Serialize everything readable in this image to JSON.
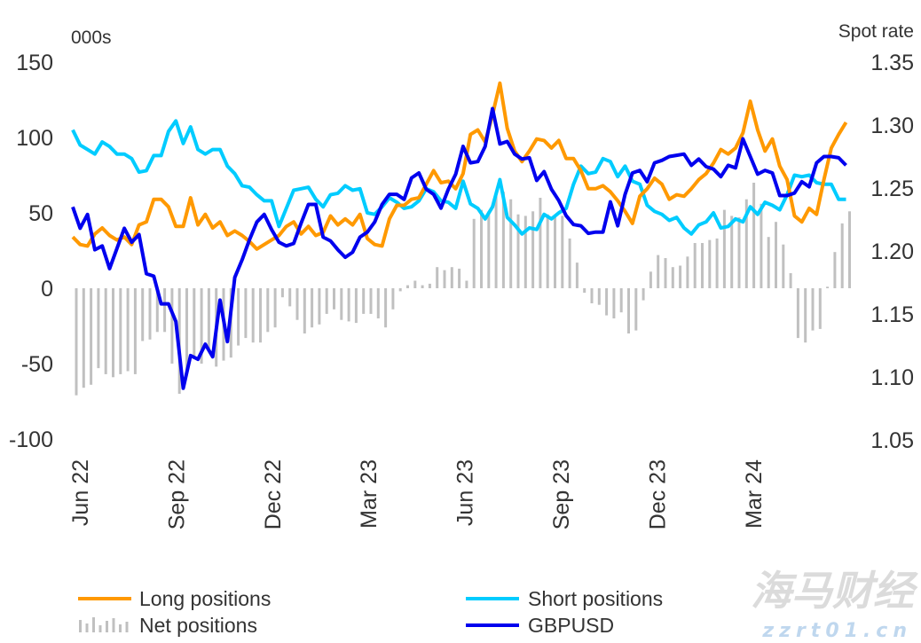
{
  "chart_data": {
    "type": "line",
    "title": "",
    "left_axis": {
      "unit_label": "000s",
      "ylim": [
        -100,
        150
      ],
      "ticks": [
        "150",
        "100",
        "50",
        "0",
        "-50",
        "-100"
      ],
      "tick_values": [
        150,
        100,
        50,
        0,
        -50,
        -100
      ]
    },
    "right_axis": {
      "unit_label": "Spot rate",
      "ylim": [
        1.05,
        1.35
      ],
      "ticks": [
        "1.35",
        "1.30",
        "1.25",
        "1.20",
        "1.15",
        "1.10",
        "1.05"
      ],
      "tick_values": [
        1.35,
        1.3,
        1.25,
        1.2,
        1.15,
        1.1,
        1.05
      ]
    },
    "x_tick_labels": [
      "Jun 22",
      "Sep 22",
      "Dec 22",
      "Mar 23",
      "Jun 23",
      "Sep 23",
      "Dec 23",
      "Mar 24"
    ],
    "grid": false,
    "legend_placement": "bottom",
    "x": [
      "2022-06-07",
      "2022-06-14",
      "2022-06-21",
      "2022-06-28",
      "2022-07-05",
      "2022-07-12",
      "2022-07-19",
      "2022-07-26",
      "2022-08-02",
      "2022-08-09",
      "2022-08-16",
      "2022-08-23",
      "2022-08-30",
      "2022-09-06",
      "2022-09-13",
      "2022-09-20",
      "2022-09-27",
      "2022-10-04",
      "2022-10-11",
      "2022-10-18",
      "2022-10-25",
      "2022-11-01",
      "2022-11-08",
      "2022-11-15",
      "2022-11-22",
      "2022-11-29",
      "2022-12-06",
      "2022-12-13",
      "2022-12-20",
      "2022-12-27",
      "2023-01-03",
      "2023-01-10",
      "2023-01-17",
      "2023-01-24",
      "2023-01-31",
      "2023-02-07",
      "2023-02-14",
      "2023-02-21",
      "2023-02-28",
      "2023-03-07",
      "2023-03-14",
      "2023-03-21",
      "2023-03-28",
      "2023-04-04",
      "2023-04-11",
      "2023-04-18",
      "2023-04-25",
      "2023-05-02",
      "2023-05-09",
      "2023-05-16",
      "2023-05-23",
      "2023-05-30",
      "2023-06-06",
      "2023-06-13",
      "2023-06-20",
      "2023-06-27",
      "2023-07-04",
      "2023-07-11",
      "2023-07-18",
      "2023-07-25",
      "2023-08-01",
      "2023-08-08",
      "2023-08-15",
      "2023-08-22",
      "2023-08-29",
      "2023-09-05",
      "2023-09-12",
      "2023-09-19",
      "2023-09-26",
      "2023-10-03",
      "2023-10-10",
      "2023-10-17",
      "2023-10-24",
      "2023-10-31",
      "2023-11-07",
      "2023-11-14",
      "2023-11-21",
      "2023-11-28",
      "2023-12-05",
      "2023-12-12",
      "2023-12-19",
      "2023-12-26",
      "2024-01-02",
      "2024-01-09",
      "2024-01-16",
      "2024-01-23",
      "2024-01-30",
      "2024-02-06",
      "2024-02-13",
      "2024-02-20",
      "2024-02-27",
      "2024-03-05",
      "2024-03-12",
      "2024-03-19",
      "2024-03-26",
      "2024-04-02",
      "2024-04-09",
      "2024-04-16",
      "2024-04-23",
      "2024-04-30",
      "2024-05-07",
      "2024-05-14",
      "2024-05-21",
      "2024-05-28",
      "2024-06-04",
      "2024-06-11"
    ],
    "series": [
      {
        "name": "Long positions",
        "axis": "left",
        "kind": "line",
        "color": "#ff9900",
        "values": [
          34,
          29,
          28,
          36,
          40,
          35,
          32,
          34,
          29,
          42,
          44,
          59,
          59,
          54,
          41,
          41,
          60,
          42,
          49,
          40,
          44,
          35,
          38,
          35,
          31,
          26,
          29,
          32,
          35,
          41,
          44,
          36,
          41,
          35,
          37,
          48,
          42,
          46,
          42,
          49,
          33,
          29,
          28,
          46,
          55,
          55,
          59,
          60,
          69,
          78,
          70,
          71,
          66,
          76,
          102,
          105,
          97,
          115,
          136,
          106,
          91,
          84,
          91,
          99,
          98,
          93,
          98,
          86,
          86,
          78,
          66,
          66,
          68,
          64,
          58,
          51,
          43,
          61,
          66,
          73,
          69,
          59,
          62,
          61,
          66,
          72,
          76,
          83,
          92,
          89,
          93,
          103,
          124,
          105,
          91,
          99,
          81,
          72,
          48,
          44,
          53,
          49,
          72,
          93,
          102,
          110
        ]
      },
      {
        "name": "Short positions",
        "axis": "left",
        "kind": "line",
        "color": "#00ccff",
        "values": [
          105,
          95,
          92,
          89,
          97,
          94,
          89,
          89,
          86,
          77,
          78,
          88,
          88,
          104,
          111,
          96,
          107,
          92,
          89,
          92,
          92,
          81,
          76,
          68,
          67,
          62,
          58,
          58,
          41,
          53,
          65,
          66,
          67,
          59,
          54,
          62,
          63,
          68,
          65,
          66,
          50,
          49,
          54,
          60,
          57,
          53,
          54,
          58,
          66,
          64,
          58,
          57,
          53,
          71,
          56,
          53,
          46,
          54,
          72,
          47,
          42,
          36,
          40,
          39,
          49,
          46,
          50,
          53,
          69,
          81,
          76,
          77,
          86,
          84,
          74,
          81,
          71,
          69,
          55,
          51,
          49,
          45,
          47,
          40,
          36,
          42,
          44,
          50,
          40,
          41,
          46,
          44,
          54,
          49,
          57,
          55,
          52,
          62,
          75,
          74,
          75,
          70,
          69,
          69,
          59,
          59
        ]
      },
      {
        "name": "Net positions",
        "axis": "left",
        "kind": "bar",
        "color": "#c0c0c0",
        "values": [
          -71,
          -66,
          -64,
          -53,
          -57,
          -59,
          -57,
          -55,
          -57,
          -35,
          -34,
          -29,
          -29,
          -50,
          -70,
          -55,
          -47,
          -50,
          -40,
          -52,
          -48,
          -46,
          -38,
          -33,
          -36,
          -36,
          -29,
          -26,
          -6,
          -12,
          -21,
          -30,
          -26,
          -24,
          -17,
          -14,
          -21,
          -22,
          -23,
          -17,
          -17,
          -20,
          -26,
          -14,
          -2,
          2,
          5,
          2,
          3,
          14,
          12,
          14,
          13,
          5,
          46,
          52,
          51,
          61,
          64,
          59,
          49,
          48,
          51,
          60,
          49,
          47,
          48,
          33,
          17,
          -3,
          -10,
          -11,
          -18,
          -20,
          -16,
          -30,
          -28,
          -8,
          11,
          22,
          20,
          14,
          15,
          21,
          30,
          30,
          32,
          33,
          52,
          48,
          47,
          59,
          70,
          56,
          34,
          44,
          29,
          10,
          -33,
          -36,
          -28,
          -27,
          1,
          24,
          43,
          51
        ]
      },
      {
        "name": "GBPUSD",
        "axis": "right",
        "kind": "line",
        "color": "#0000ee",
        "values": [
          1.235,
          1.218,
          1.229,
          1.201,
          1.204,
          1.186,
          1.202,
          1.218,
          1.207,
          1.213,
          1.182,
          1.18,
          1.158,
          1.158,
          1.144,
          1.091,
          1.117,
          1.114,
          1.126,
          1.116,
          1.161,
          1.128,
          1.179,
          1.193,
          1.209,
          1.223,
          1.229,
          1.217,
          1.207,
          1.204,
          1.206,
          1.222,
          1.237,
          1.237,
          1.211,
          1.208,
          1.201,
          1.195,
          1.199,
          1.211,
          1.215,
          1.223,
          1.237,
          1.245,
          1.245,
          1.241,
          1.258,
          1.262,
          1.249,
          1.245,
          1.234,
          1.249,
          1.261,
          1.283,
          1.27,
          1.271,
          1.283,
          1.313,
          1.285,
          1.287,
          1.277,
          1.273,
          1.274,
          1.256,
          1.263,
          1.249,
          1.24,
          1.228,
          1.221,
          1.22,
          1.214,
          1.215,
          1.215,
          1.239,
          1.22,
          1.245,
          1.262,
          1.264,
          1.255,
          1.27,
          1.272,
          1.275,
          1.276,
          1.277,
          1.268,
          1.273,
          1.267,
          1.265,
          1.259,
          1.268,
          1.266,
          1.289,
          1.275,
          1.261,
          1.264,
          1.262,
          1.244,
          1.244,
          1.246,
          1.255,
          1.251,
          1.27,
          1.275,
          1.275,
          1.274,
          1.268
        ]
      }
    ]
  },
  "legend": {
    "long": "Long positions",
    "short": "Short positions",
    "net": "Net positions",
    "gbpusd": "GBPUSD"
  },
  "watermark": {
    "cn": "海马财经",
    "url": "zzrt01.cn"
  }
}
